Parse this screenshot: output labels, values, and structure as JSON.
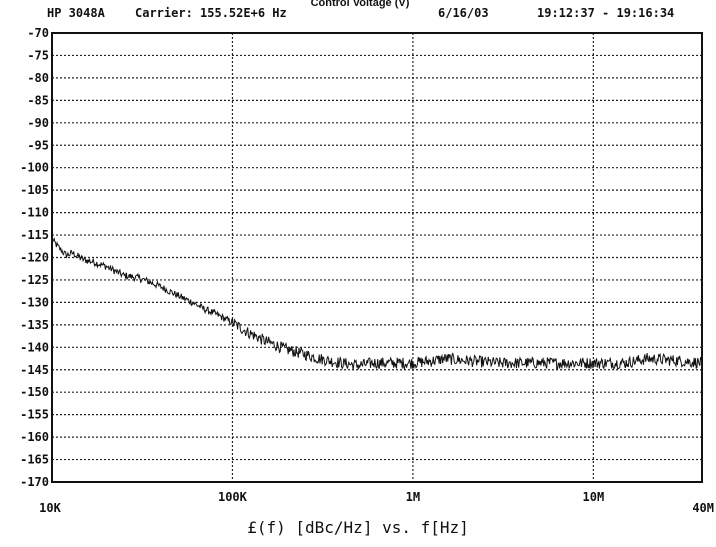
{
  "header": {
    "instrument": "HP 3048A",
    "carrier": "Carrier: 155.52E+6 Hz",
    "date": "6/16/03",
    "time_range": "19:12:37 - 19:16:34",
    "overlay_title": "Control Voltage (V)"
  },
  "chart_data": {
    "type": "line",
    "title": "",
    "xlabel": "£(f) [dBc/Hz] vs. f[Hz]",
    "ylabel": "",
    "x_scale": "log",
    "xlim": [
      10000,
      40000000
    ],
    "ylim": [
      -170,
      -70
    ],
    "y_ticks": [
      -70,
      -75,
      -80,
      -85,
      -90,
      -95,
      -100,
      -105,
      -110,
      -115,
      -120,
      -125,
      -130,
      -135,
      -140,
      -145,
      -150,
      -155,
      -160,
      -165,
      -170
    ],
    "y_tick_labels": [
      "-70",
      "-75",
      "-80",
      "-85",
      "-90",
      "-95",
      "-100",
      "-105",
      "-110",
      "-115",
      "-120",
      "-125",
      "-130",
      "-135",
      "-140",
      "-145",
      "-150",
      "-155",
      "-160",
      "-165",
      "-170"
    ],
    "x_ticks": [
      10000,
      100000,
      1000000,
      10000000,
      40000000
    ],
    "x_tick_labels": [
      "10K",
      "100K",
      "1M",
      "10M",
      "40M"
    ],
    "grid": true,
    "line_color": "#111111",
    "series": [
      {
        "x": [
          10000,
          11000,
          12000,
          13000,
          15000,
          17000,
          20000,
          25000,
          30000,
          35000,
          40000,
          50000,
          60000,
          70000,
          80000,
          100000,
          120000,
          150000,
          200000,
          250000,
          300000,
          400000,
          500000,
          600000,
          800000,
          1000000,
          1300000,
          1500000,
          2000000,
          3000000,
          5000000,
          7000000,
          10000000,
          15000000,
          20000000,
          30000000,
          40000000
        ],
        "y": [
          -116,
          -118,
          -119.5,
          -119,
          -120.5,
          -121,
          -122,
          -124,
          -124.5,
          -125.5,
          -126.5,
          -128.5,
          -130,
          -131.5,
          -132.5,
          -134.5,
          -136.5,
          -138.5,
          -140.5,
          -141.5,
          -142.5,
          -143.5,
          -144,
          -143.5,
          -143.5,
          -143.5,
          -143,
          -142.5,
          -143,
          -143.5,
          -143.5,
          -143.5,
          -143.5,
          -143.5,
          -142.5,
          -143,
          -143.5
        ]
      }
    ]
  }
}
